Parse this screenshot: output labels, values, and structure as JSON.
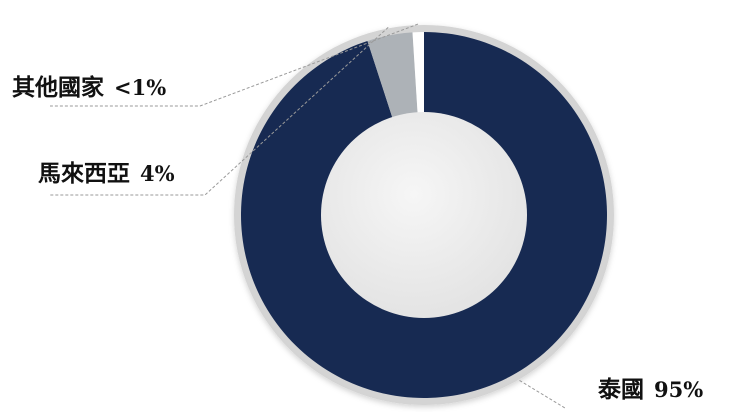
{
  "chart_data": {
    "type": "pie",
    "variant": "donut",
    "slices": [
      {
        "name": "泰國",
        "value": 95,
        "display": "95%",
        "color": "#172a52"
      },
      {
        "name": "馬來西亞",
        "value": 4,
        "display": "4%",
        "color": "#adb2b7"
      },
      {
        "name": "其他國家",
        "value": 1,
        "display": "<1%",
        "color": "#ffffff"
      }
    ],
    "title": "",
    "legend": "none"
  },
  "colors": {
    "ring_border": "#d4d4d4",
    "center": "#e9e9e9",
    "leader_line": "#9a9a9a"
  }
}
